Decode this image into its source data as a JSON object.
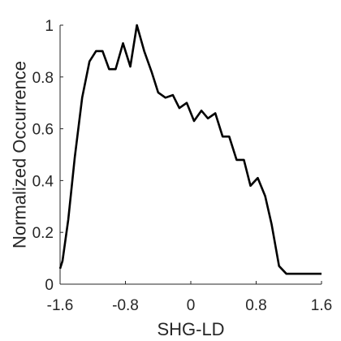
{
  "chart_data": {
    "type": "line",
    "title": "",
    "xlabel": "SHG-LD",
    "ylabel": "Normalized Occurrence",
    "xlim": [
      -1.6,
      1.6
    ],
    "ylim": [
      0,
      1
    ],
    "xticks": [
      -1.6,
      -0.8,
      0,
      0.8,
      1.6
    ],
    "xtick_labels": [
      "-1.6",
      "-0.8",
      "0",
      "0.8",
      "1.6"
    ],
    "yticks": [
      0,
      0.2,
      0.4,
      0.6,
      0.8,
      1
    ],
    "ytick_labels": [
      "0",
      "0.2",
      "0.4",
      "0.6",
      "0.8",
      "1"
    ],
    "grid": false,
    "line_color": "#000000",
    "series": [
      {
        "x": [
          -1.6,
          -1.57,
          -1.5,
          -1.42,
          -1.33,
          -1.24,
          -1.16,
          -1.08,
          -1.0,
          -0.92,
          -0.83,
          -0.74,
          -0.66,
          -0.57,
          -0.48,
          -0.4,
          -0.31,
          -0.22,
          -0.14,
          -0.05,
          0.04,
          0.13,
          0.21,
          0.3,
          0.39,
          0.47,
          0.56,
          0.65,
          0.73,
          0.82,
          0.91,
          0.99,
          1.08,
          1.17,
          1.25,
          1.34,
          1.43,
          1.51,
          1.6
        ],
        "y": [
          0.06,
          0.09,
          0.25,
          0.49,
          0.72,
          0.86,
          0.9,
          0.9,
          0.83,
          0.83,
          0.93,
          0.84,
          1.0,
          0.9,
          0.82,
          0.74,
          0.72,
          0.73,
          0.68,
          0.7,
          0.63,
          0.67,
          0.64,
          0.66,
          0.57,
          0.57,
          0.48,
          0.48,
          0.38,
          0.41,
          0.34,
          0.23,
          0.07,
          0.04,
          0.04,
          0.04,
          0.04,
          0.04,
          0.04
        ]
      }
    ]
  }
}
